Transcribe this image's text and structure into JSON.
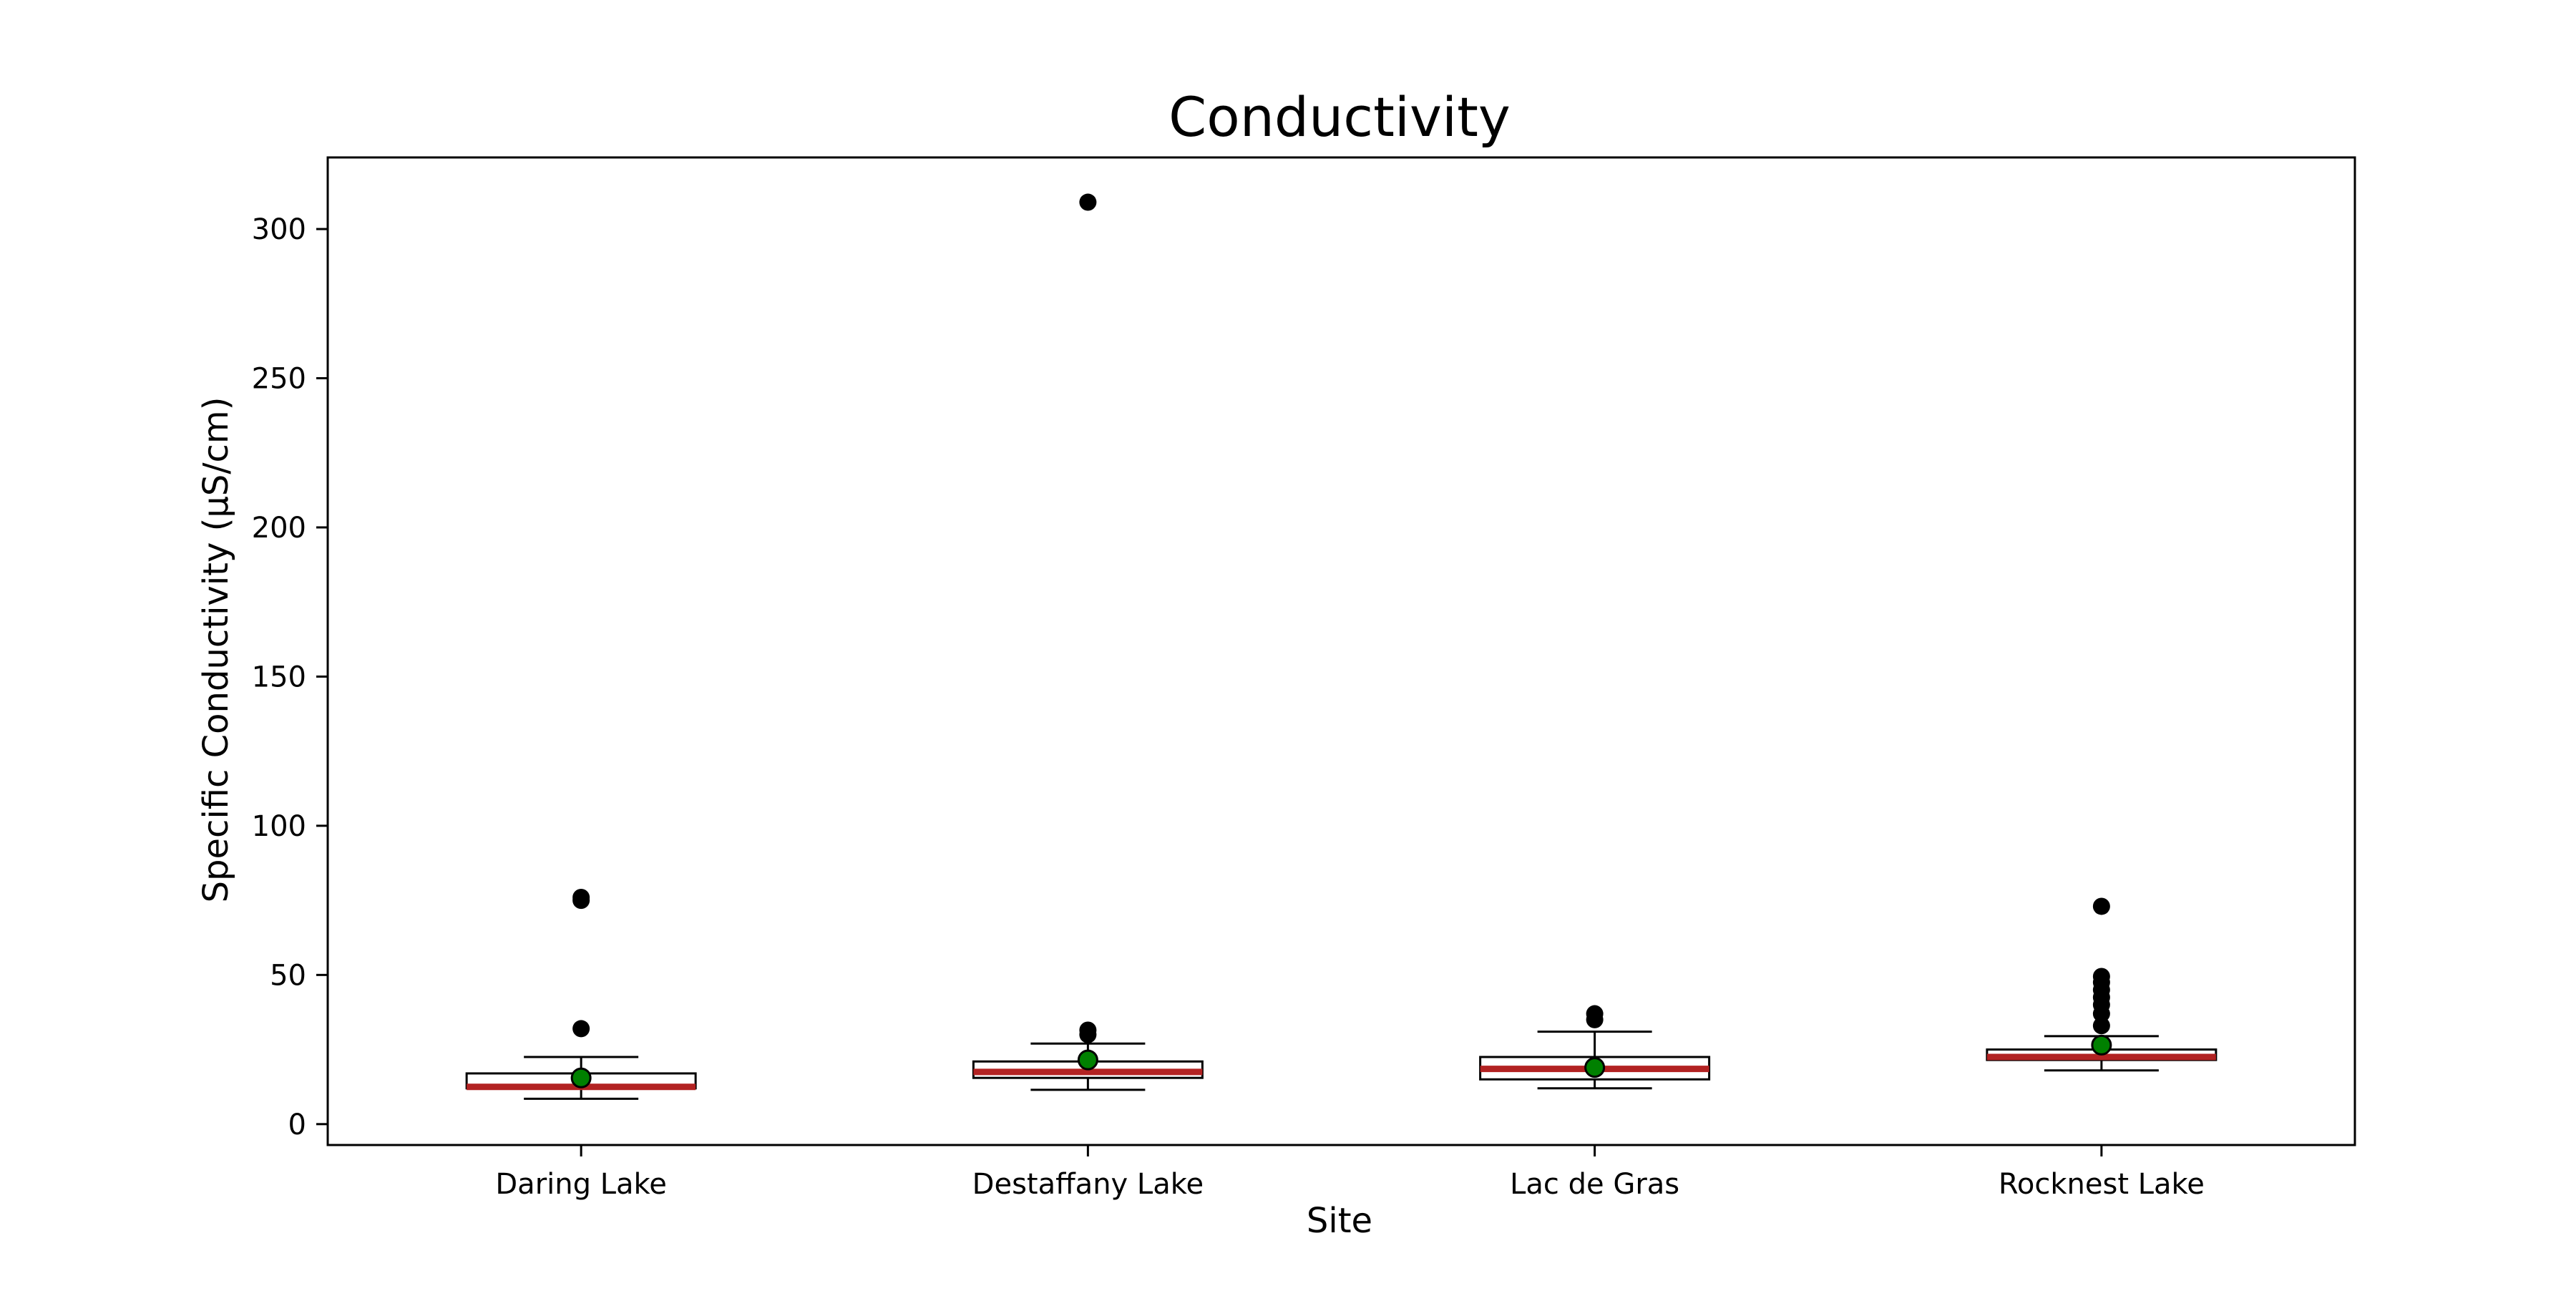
{
  "chart_data": {
    "type": "box",
    "title": "Conductivity",
    "xlabel": "Site",
    "ylabel": "Specific Conductivity (µS/cm)",
    "ylim": [
      -7,
      324
    ],
    "yticks": [
      0,
      50,
      100,
      150,
      200,
      250,
      300
    ],
    "grid": false,
    "categories": [
      "Daring Lake",
      "Destaffany Lake",
      "Lac de Gras",
      "Rocknest Lake"
    ],
    "boxes": [
      {
        "category": "Daring Lake",
        "whisker_low": 8.5,
        "q1": 12,
        "median": 12.5,
        "q3": 17,
        "whisker_high": 22.5,
        "mean": 15.5,
        "outliers": [
          32,
          75,
          76
        ]
      },
      {
        "category": "Destaffany Lake",
        "whisker_low": 11.5,
        "q1": 15.5,
        "median": 17.5,
        "q3": 21,
        "whisker_high": 27,
        "mean": 21.5,
        "outliers": [
          30,
          31.5,
          309
        ]
      },
      {
        "category": "Lac de Gras",
        "whisker_low": 12,
        "q1": 15,
        "median": 18.5,
        "q3": 22.5,
        "whisker_high": 31,
        "mean": 19,
        "outliers": [
          35,
          37
        ]
      },
      {
        "category": "Rocknest Lake",
        "whisker_low": 18,
        "q1": 21.5,
        "median": 22.5,
        "q3": 25,
        "whisker_high": 29.5,
        "mean": 26.5,
        "outliers": [
          33,
          37,
          40,
          42.5,
          45,
          47.5,
          49.5,
          73
        ]
      }
    ],
    "colors": {
      "median": "#b22222",
      "mean_fill": "#008000",
      "outlier": "#000000",
      "box_edge": "#000000"
    }
  }
}
